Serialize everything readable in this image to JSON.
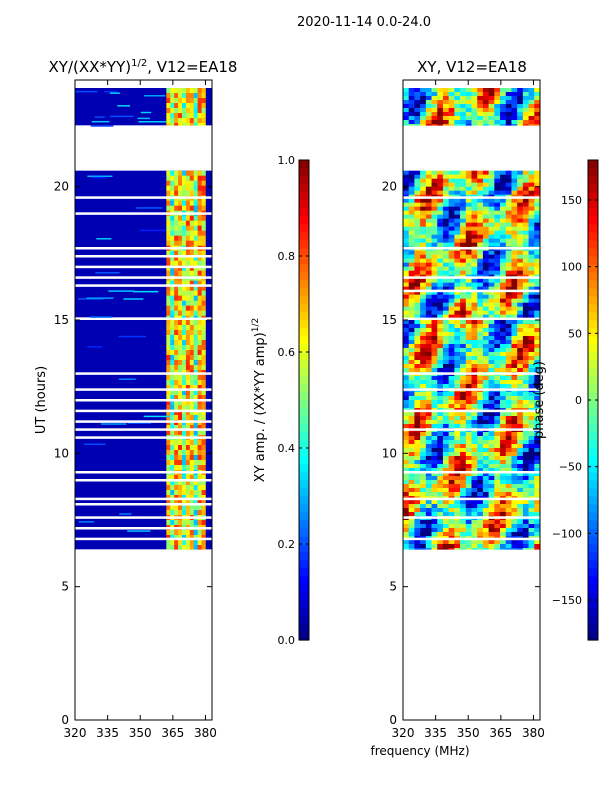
{
  "figure": {
    "suptitle": "2020-11-14 0.0-24.0",
    "shared_xlabel": "frequency (MHz)"
  },
  "colors": {
    "axis": "#000000",
    "background": "#ffffff",
    "gap": "#ffffff"
  },
  "chart_data": [
    {
      "type": "heatmap",
      "title": "XY/(XX*YY)^1/2, V12=EA18",
      "title_base": "XY/(XX*YY)",
      "title_exp": "1/2",
      "title_suffix": ", V12=EA18",
      "xlabel": "",
      "ylabel": "UT (hours)",
      "xlim": [
        320,
        383
      ],
      "ylim": [
        0,
        24
      ],
      "xticks": [
        320,
        335,
        350,
        365,
        380
      ],
      "yticks": [
        0,
        5,
        10,
        15,
        20
      ],
      "colormap": "jet",
      "colorbar": {
        "label": "XY amp. / (XX*YY amp)^1/2",
        "label_base": "XY amp. / (XX*YY amp)",
        "label_exp": "1/2",
        "range": [
          0.0,
          1.0
        ],
        "ticks": [
          0.0,
          0.2,
          0.4,
          0.6,
          0.8,
          1.0
        ],
        "tick_labels": [
          "0.0",
          "0.2",
          "0.4",
          "0.6",
          "0.8",
          "1.0"
        ]
      },
      "data_blocks_ut": [
        [
          22.3,
          23.7
        ],
        [
          15.1,
          20.6
        ],
        [
          6.4,
          15.0
        ]
      ],
      "gap_rows_ut": [
        21.0,
        21.4,
        19.6,
        19.0,
        17.7,
        17.4,
        17.0,
        16.6,
        16.3,
        13.0,
        12.4,
        12.0,
        11.6,
        11.2,
        10.9,
        10.6,
        9.3,
        9.0,
        8.3,
        8.1,
        7.6,
        7.2,
        6.8
      ],
      "high_amplitude_band_mhz": [
        362,
        380
      ],
      "background_level": 0.05
    },
    {
      "type": "heatmap",
      "title": "XY, V12=EA18",
      "xlabel": "frequency (MHz)",
      "ylabel": "",
      "xlim": [
        320,
        383
      ],
      "ylim": [
        0,
        24
      ],
      "xticks": [
        320,
        335,
        350,
        365,
        380
      ],
      "yticks": [
        0,
        5,
        10,
        15,
        20
      ],
      "colormap": "jet",
      "colorbar": {
        "label": "phase (deg)",
        "range": [
          -180,
          180
        ],
        "ticks": [
          -150,
          -100,
          -50,
          0,
          50,
          100,
          150
        ],
        "tick_labels": [
          "−150",
          "−100",
          "−50",
          "0",
          "50",
          "100",
          "150"
        ]
      },
      "data_blocks_ut": [
        [
          22.3,
          23.7
        ],
        [
          15.1,
          20.6
        ],
        [
          6.4,
          15.0
        ]
      ],
      "gap_rows_ut": [
        21.0,
        21.4,
        19.6,
        17.7,
        16.6,
        16.1,
        13.0,
        12.4,
        11.6,
        10.9,
        9.3,
        8.3,
        7.6,
        6.8
      ]
    }
  ]
}
